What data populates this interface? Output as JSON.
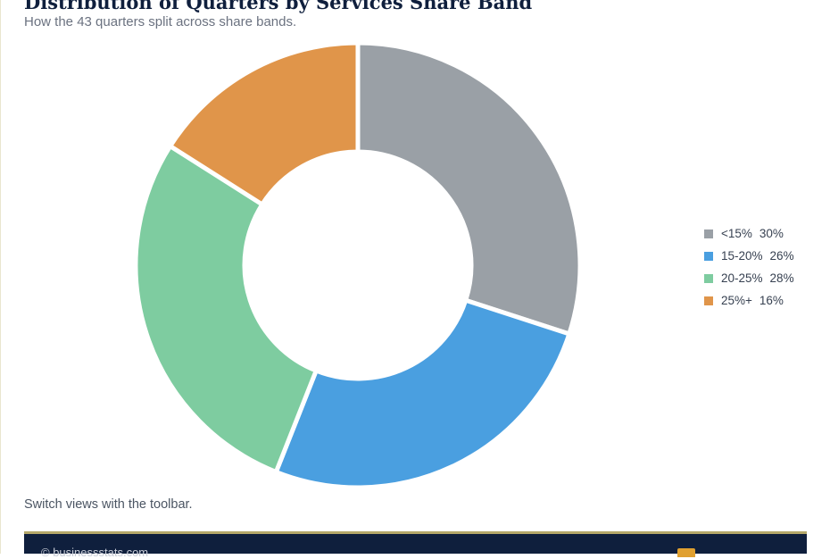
{
  "header": {
    "title": "Distribution of Quarters by Services Share Band",
    "subtitle": "How the 43 quarters split across share bands."
  },
  "footnote": "Switch views with the toolbar.",
  "footer": {
    "copyright": "© businessstats.com"
  },
  "colors": {
    "title": "#0f1f3d",
    "footer_bg": "#0f1f3d",
    "footer_rule": "#b5a86a",
    "badge": "#e0a030"
  },
  "chart_data": {
    "type": "pie",
    "variant": "donut",
    "title": "Distribution of Quarters by Services Share Band",
    "subtitle": "How the 43 quarters split across share bands.",
    "legend_position": "right",
    "slices": [
      {
        "label": "<15%",
        "value": 30,
        "display": "30%",
        "color": "#9aa0a6"
      },
      {
        "label": "15-20%",
        "value": 26,
        "display": "26%",
        "color": "#4a9fe0"
      },
      {
        "label": "20-25%",
        "value": 28,
        "display": "28%",
        "color": "#7ecca0"
      },
      {
        "label": "25%+",
        "value": 16,
        "display": "16%",
        "color": "#e0954a"
      }
    ]
  }
}
